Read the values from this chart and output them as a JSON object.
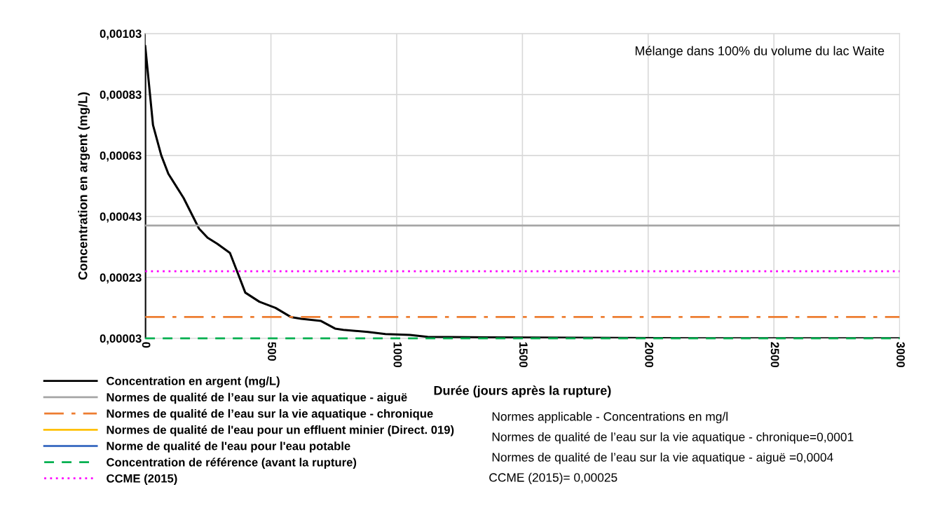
{
  "chart_data": {
    "type": "line",
    "xlabel": "Durée (jours après la rupture)",
    "ylabel": "Concentration en argent (mg/L)",
    "xlim": [
      0,
      3000
    ],
    "xticks": [
      0,
      500,
      1000,
      1500,
      2000,
      2500,
      3000
    ],
    "ylim": [
      3e-05,
      0.00103
    ],
    "yticks": [
      {
        "value": 3e-05,
        "label": "0,00003"
      },
      {
        "value": 0.00023,
        "label": "0,00023"
      },
      {
        "value": 0.00043,
        "label": "0,00043"
      },
      {
        "value": 0.00063,
        "label": "0,00063"
      },
      {
        "value": 0.00083,
        "label": "0,00083"
      },
      {
        "value": 0.00103,
        "label": "0,00103"
      }
    ],
    "grid": true,
    "legend": "bottom left",
    "series": [
      {
        "name": "Concentration en argent (mg/L)",
        "color": "#000000",
        "line_style": "solid",
        "x": [
          0,
          0,
          31,
          64,
          92,
          153,
          214,
          248,
          287,
          337,
          370,
          398,
          454,
          518,
          579,
          621,
          699,
          755,
          788,
          886,
          955,
          1053,
          1123,
          1373,
          2209,
          3000
        ],
        "values": [
          3e-05,
          0.00099,
          0.00073,
          0.00063,
          0.00057,
          0.00049,
          0.00039,
          0.00036,
          0.00034,
          0.00031,
          0.00024,
          0.00018,
          0.00015,
          0.00013,
          0.0001,
          9.4e-05,
          8.7e-05,
          6.2e-05,
          5.8e-05,
          5.1e-05,
          4.4e-05,
          4.1e-05,
          3.5e-05,
          3.3e-05,
          3e-05,
          3e-05
        ]
      },
      {
        "name": "Normes de qualité de l’eau sur la vie aquatique - aiguë",
        "color": "#a6a6a6",
        "line_style": "solid",
        "x": [
          0,
          3000
        ],
        "values": [
          0.0004,
          0.0004
        ]
      },
      {
        "name": "Normes de qualité de l’eau sur la vie aquatique - chronique",
        "color": "#ed7d31",
        "line_style": "dashdot",
        "x": [
          0,
          3000
        ],
        "values": [
          0.0001,
          0.0001
        ]
      },
      {
        "name": "Normes de qualité de l'eau pour un effluent minier (Direct. 019)",
        "color": "#ffc000",
        "line_style": "solid"
      },
      {
        "name": "Norme de qualité de l'eau pour l'eau potable",
        "color": "#4472c4",
        "line_style": "solid"
      },
      {
        "name": "Concentration de référence (avant la rupture)",
        "color": "#00b050",
        "line_style": "dashed",
        "x": [
          0,
          3000
        ],
        "values": [
          3e-05,
          3e-05
        ]
      },
      {
        "name": "CCME (2015)",
        "color": "#ff00ff",
        "line_style": "dotted",
        "x": [
          0,
          3000
        ],
        "values": [
          0.00025,
          0.00025
        ]
      }
    ],
    "annotations": [
      "Mélange dans 100% du volume du lac Waite",
      "Normes applicable - Concentrations en mg/l",
      "Normes de qualité de l’eau sur la vie aquatique - chronique=0,0001",
      "Normes de qualité de l’eau sur la vie aquatique - aiguë =0,0004",
      "CCME (2015)= 0,00025"
    ]
  }
}
